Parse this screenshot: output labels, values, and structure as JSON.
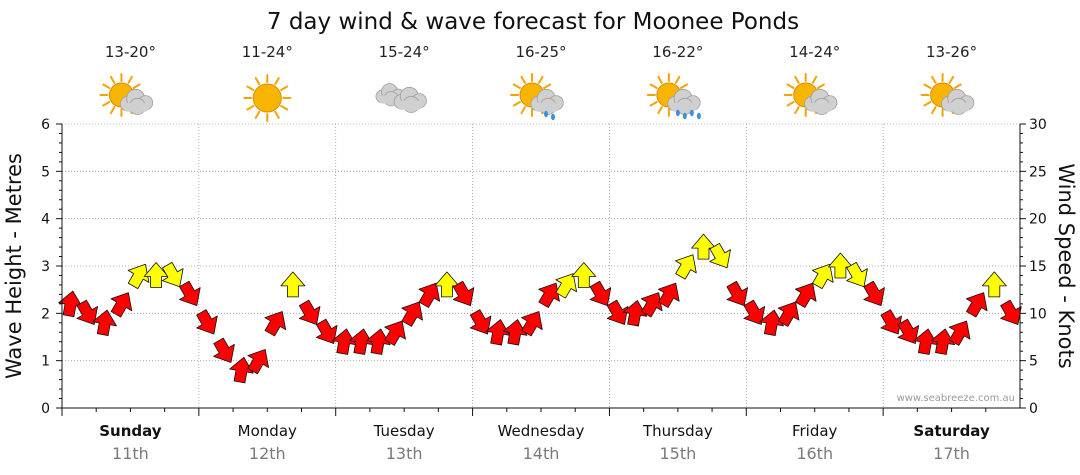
{
  "chart_data": {
    "type": "line",
    "title": "7 day wind & wave forecast for Moonee Ponds",
    "ylabel_left": "Wave Height - Metres",
    "ylabel_right": "Wind Speed - Knots",
    "ylim_left": [
      0,
      6
    ],
    "ylim_right": [
      0,
      30
    ],
    "yticks_left": [
      "0",
      "1",
      "2",
      "3",
      "4",
      "5",
      "6"
    ],
    "yticks_right": [
      "0",
      "5",
      "10",
      "15",
      "20",
      "25",
      "30"
    ],
    "watermark": "www.seabreeze.com.au",
    "days": [
      {
        "name": "Sunday",
        "date": "11th",
        "temp": "13-20°",
        "weather": "partly-cloudy-icon",
        "bold": true
      },
      {
        "name": "Monday",
        "date": "12th",
        "temp": "11-24°",
        "weather": "sunny-icon",
        "bold": false
      },
      {
        "name": "Tuesday",
        "date": "13th",
        "temp": "15-24°",
        "weather": "cloudy-icon",
        "bold": false
      },
      {
        "name": "Wednesday",
        "date": "14th",
        "temp": "16-25°",
        "weather": "partly-cloudy-showers-icon",
        "bold": false
      },
      {
        "name": "Thursday",
        "date": "15th",
        "temp": "16-22°",
        "weather": "partly-cloudy-rain-icon",
        "bold": false
      },
      {
        "name": "Friday",
        "date": "16th",
        "temp": "14-24°",
        "weather": "partly-cloudy-icon",
        "bold": false
      },
      {
        "name": "Saturday",
        "date": "17th",
        "temp": "13-26°",
        "weather": "partly-cloudy-icon",
        "bold": true
      }
    ],
    "series": [
      {
        "name": "Wind Speed (knots)",
        "color_low": "#ff0000",
        "color_high": "#ffff00",
        "threshold_knots": 13,
        "points_per_day": 8,
        "values": [
          11,
          10,
          9,
          11,
          14,
          14,
          14,
          12,
          9,
          6,
          4,
          5,
          9,
          13,
          10,
          8,
          7,
          7,
          7,
          8,
          10,
          12,
          13,
          12,
          9,
          8,
          8,
          9,
          12,
          13,
          14,
          12,
          10,
          10,
          11,
          12,
          15,
          17,
          16,
          12,
          10,
          9,
          10,
          12,
          14,
          15,
          14,
          12,
          9,
          8,
          7,
          7,
          8,
          11,
          13,
          10
        ]
      }
    ]
  }
}
